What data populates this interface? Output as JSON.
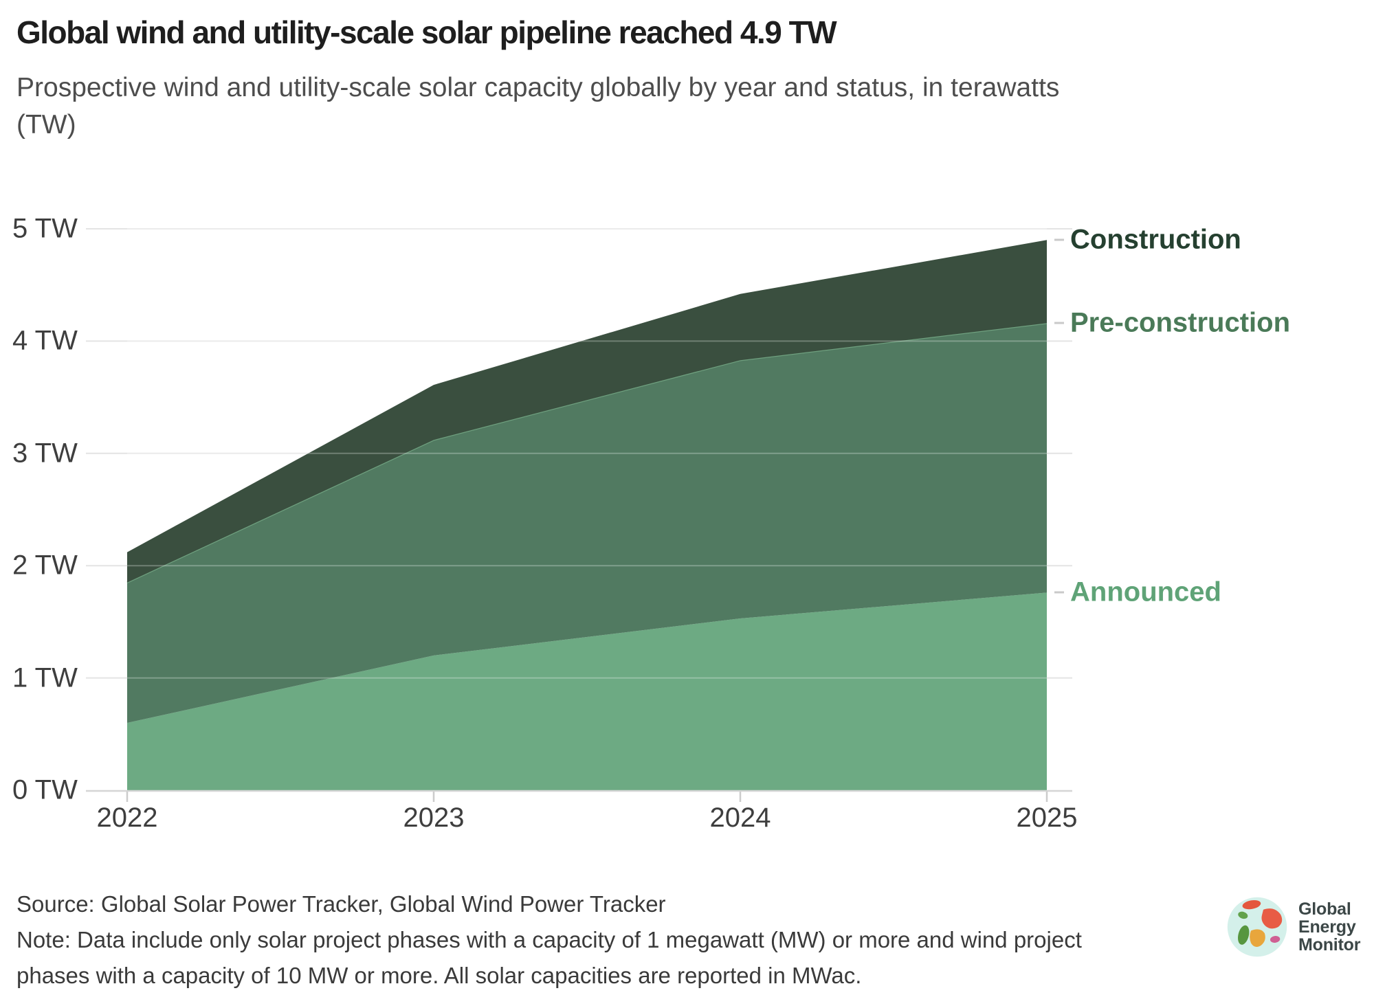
{
  "header": {
    "title": "Global wind and utility-scale solar pipeline reached 4.9 TW",
    "subtitle_lines": [
      "Prospective wind and utility-scale solar capacity globally by year and status, in terawatts",
      "(TW)"
    ]
  },
  "chart_data": {
    "type": "area",
    "stacked": true,
    "title": "Global wind and utility-scale solar pipeline reached 4.9 TW",
    "x": [
      "2022",
      "2023",
      "2024",
      "2025"
    ],
    "y_tick_labels": [
      "0 TW",
      "1 TW",
      "2 TW",
      "3 TW",
      "4 TW",
      "5 TW"
    ],
    "ylim": [
      0,
      5
    ],
    "ylabel": "terawatts (TW)",
    "grid": true,
    "legend_position": "right-edge-labels",
    "series": [
      {
        "name": "Announced",
        "values": [
          0.6,
          1.2,
          1.53,
          1.76
        ],
        "color": "#6daa83",
        "label_color": "#5fa377"
      },
      {
        "name": "Pre-construction",
        "values": [
          1.25,
          1.92,
          2.3,
          2.4
        ],
        "color": "#517a61",
        "label_color": "#4a7a58",
        "edge_color": "#6fa07f"
      },
      {
        "name": "Construction",
        "values": [
          0.27,
          0.49,
          0.59,
          0.74
        ],
        "color": "#3a4f3f",
        "label_color": "#254030"
      }
    ],
    "stack_totals": [
      2.12,
      3.61,
      4.42,
      4.9
    ],
    "style": {
      "grid_color": "#e4e4e4",
      "grid_over_area_color": "rgba(255,255,255,0.28)",
      "axis_color": "#d5d5d5",
      "tick_color": "#cccccc",
      "text_color": "#3e3e3e"
    }
  },
  "footer": {
    "source_line": "Source: Global Solar Power Tracker, Global Wind Power Tracker",
    "note_lines": [
      "Note: Data include only solar project phases with a capacity of 1 megawatt (MW) or more and wind project",
      "phases with a capacity of 10 MW or more. All solar capacities are reported in MWac."
    ],
    "logo": {
      "lines": [
        "Global",
        "Energy",
        "Monitor"
      ]
    }
  }
}
